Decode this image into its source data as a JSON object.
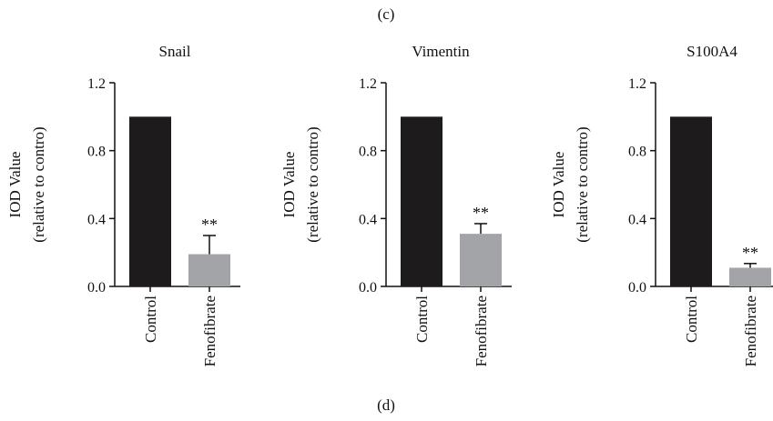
{
  "figure": {
    "top_label": "(c)",
    "bottom_label": "(d)"
  },
  "chart_data": [
    {
      "type": "bar",
      "title": "Snail",
      "ylabel_line1": "IOD Value",
      "ylabel_line2": "(relative to contro)",
      "categories": [
        "Control",
        "Fenofibrate"
      ],
      "values": [
        1.0,
        0.19
      ],
      "errors": [
        0,
        0.11
      ],
      "annotations": [
        "",
        "**"
      ],
      "ylim": [
        0,
        1.2
      ],
      "yticks": [
        "0.0",
        "0.4",
        "0.8",
        "1.2"
      ],
      "bar_colors": [
        "#1e1b1c",
        "#a3a4a7"
      ]
    },
    {
      "type": "bar",
      "title": "Vimentin",
      "ylabel_line1": "IOD Value",
      "ylabel_line2": "(relative to contro)",
      "categories": [
        "Control",
        "Fenofibrate"
      ],
      "values": [
        1.0,
        0.31
      ],
      "errors": [
        0,
        0.06
      ],
      "annotations": [
        "",
        "**"
      ],
      "ylim": [
        0,
        1.2
      ],
      "yticks": [
        "0.0",
        "0.4",
        "0.8",
        "1.2"
      ],
      "bar_colors": [
        "#1e1b1c",
        "#a3a4a7"
      ]
    },
    {
      "type": "bar",
      "title": "S100A4",
      "ylabel_line1": "IOD Value",
      "ylabel_line2": "(relative to contro)",
      "categories": [
        "Control",
        "Fenofibrate"
      ],
      "values": [
        1.0,
        0.11
      ],
      "errors": [
        0,
        0.025
      ],
      "annotations": [
        "",
        "**"
      ],
      "ylim": [
        0,
        1.2
      ],
      "yticks": [
        "0.0",
        "0.4",
        "0.8",
        "1.2"
      ],
      "bar_colors": [
        "#1e1b1c",
        "#a3a4a7"
      ]
    }
  ]
}
